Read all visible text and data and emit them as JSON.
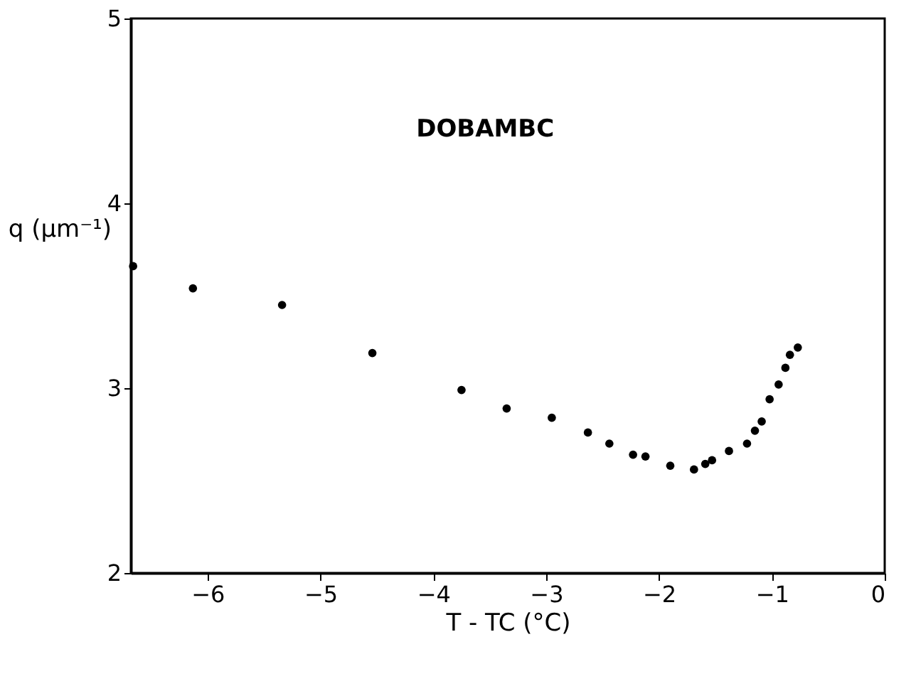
{
  "chart_data": {
    "type": "scatter",
    "xlabel": "T - TC (°C)",
    "ylabel": "q (μm⁻¹)",
    "annotations": [
      "DOBAMBC"
    ],
    "x": [
      -6.66,
      -6.13,
      -5.34,
      -4.54,
      -3.75,
      -3.35,
      -2.95,
      -2.63,
      -2.44,
      -2.23,
      -2.12,
      -1.9,
      -1.69,
      -1.59,
      -1.53,
      -1.38,
      -1.22,
      -1.15,
      -1.09,
      -1.02,
      -0.94,
      -0.88,
      -0.84,
      -0.77
    ],
    "series": [
      {
        "color": "#000000",
        "values": [
          3.66,
          3.54,
          3.45,
          3.19,
          2.99,
          2.89,
          2.84,
          2.76,
          2.7,
          2.64,
          2.63,
          2.58,
          2.56,
          2.59,
          2.61,
          2.66,
          2.7,
          2.77,
          2.82,
          2.94,
          3.02,
          3.11,
          3.18,
          3.22
        ]
      }
    ],
    "xlim": [
      -6.68,
      0
    ],
    "ylim": [
      2,
      5
    ],
    "xticks": [
      -6,
      -5,
      -4,
      -3,
      -2,
      -1,
      0
    ],
    "yticks": [
      2,
      3,
      4,
      5
    ],
    "marker": "circle",
    "grid": false
  }
}
